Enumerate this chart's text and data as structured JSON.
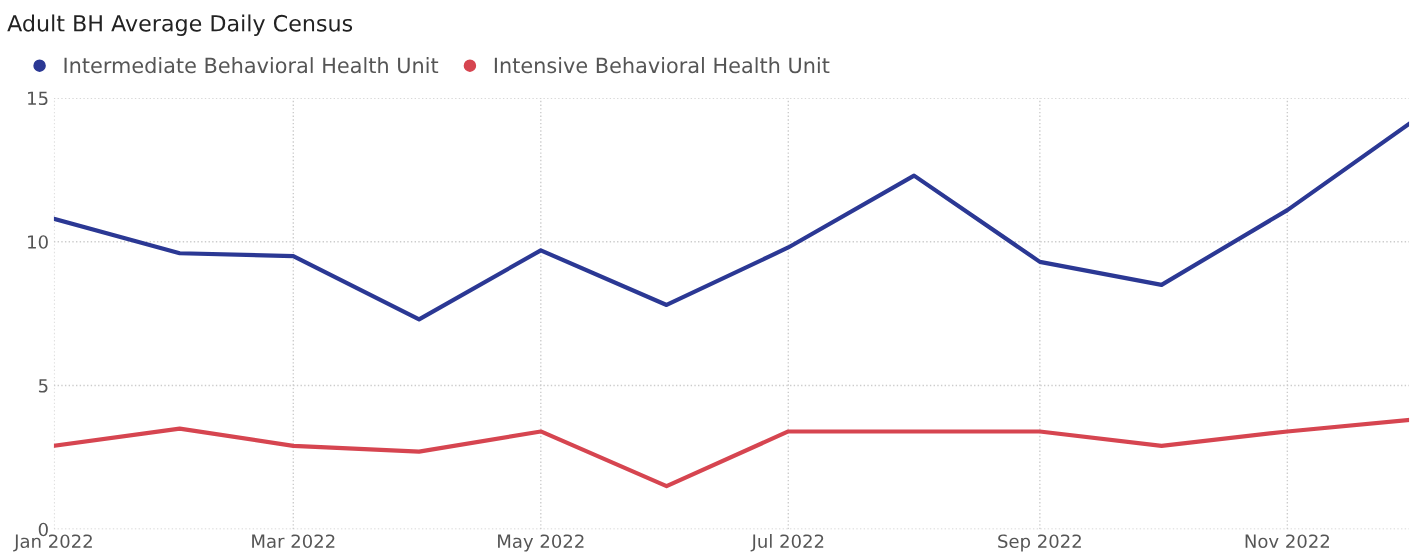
{
  "chart_data": {
    "type": "line",
    "title": "Adult BH Average Daily Census",
    "x": [
      "2022-01",
      "2022-02",
      "2022-03",
      "2022-04",
      "2022-05",
      "2022-06",
      "2022-07",
      "2022-08",
      "2022-09",
      "2022-10",
      "2022-11",
      "2022-12"
    ],
    "series": [
      {
        "name": "Intermediate Behavioral Health Unit",
        "color": "#2b3894",
        "values": [
          10.8,
          9.6,
          9.5,
          7.3,
          9.7,
          7.8,
          9.8,
          12.3,
          9.3,
          8.5,
          11.1,
          14.1
        ]
      },
      {
        "name": "Intensive Behavioral Health Unit",
        "color": "#d64550",
        "values": [
          2.9,
          3.5,
          2.9,
          2.7,
          3.4,
          1.5,
          3.4,
          3.4,
          3.4,
          2.9,
          3.4,
          3.8
        ]
      }
    ],
    "xlim": [
      "2022-01",
      "2022-12"
    ],
    "xticks": [
      {
        "value": "2022-01",
        "label": "Jan 2022"
      },
      {
        "value": "2022-03",
        "label": "Mar 2022"
      },
      {
        "value": "2022-05",
        "label": "May 2022"
      },
      {
        "value": "2022-07",
        "label": "Jul 2022"
      },
      {
        "value": "2022-09",
        "label": "Sep 2022"
      },
      {
        "value": "2022-11",
        "label": "Nov 2022"
      }
    ],
    "ylim": [
      0,
      15
    ],
    "yticks": [
      0,
      5,
      10,
      15
    ],
    "grid": true,
    "legend": "top left",
    "marker": "none",
    "line_style": "solid"
  }
}
